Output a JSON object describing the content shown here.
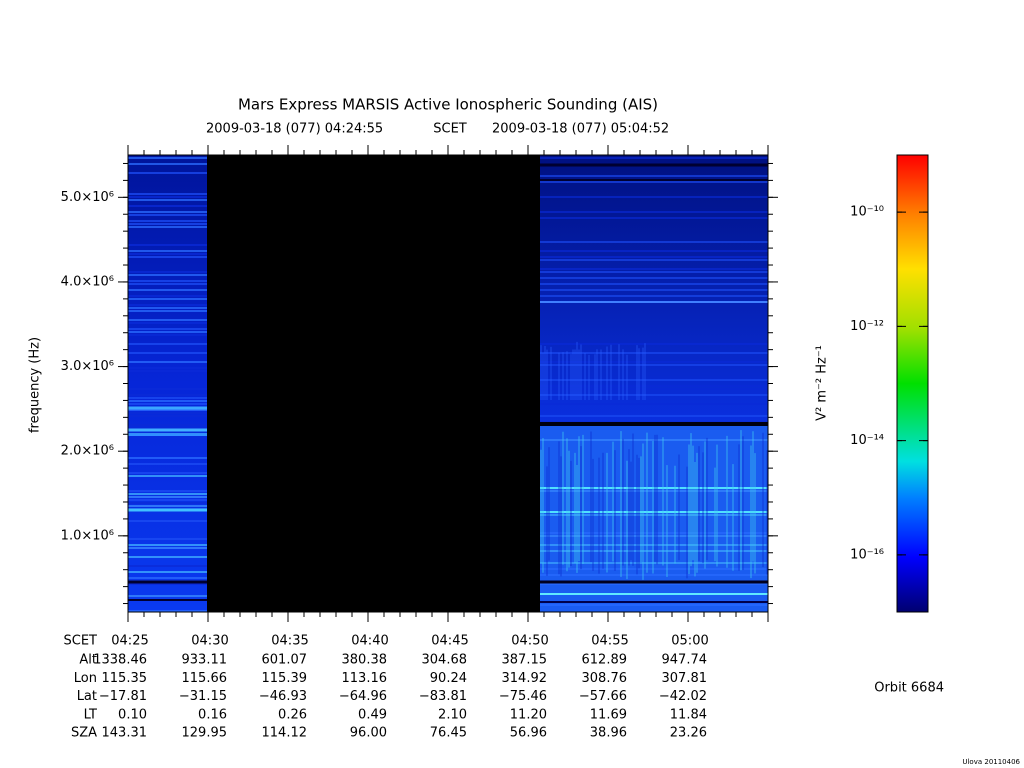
{
  "chart_data": {
    "type": "spectrogram",
    "title": "Mars Express MARSIS Active Ionospheric Sounding (AIS)",
    "time_start": "2009-03-18 (077) 04:24:55",
    "time_frame": "SCET",
    "time_end": "2009-03-18 (077) 05:04:52",
    "y_label": "frequency (Hz)",
    "ylim": [
      100000,
      5500000
    ],
    "yticks": [
      {
        "value": 1000000,
        "label": "1.0×10⁶"
      },
      {
        "value": 2000000,
        "label": "2.0×10⁶"
      },
      {
        "value": 3000000,
        "label": "3.0×10⁶"
      },
      {
        "value": 4000000,
        "label": "4.0×10⁶"
      },
      {
        "value": 5000000,
        "label": "5.0×10⁶"
      }
    ],
    "x_label": "SCET",
    "xticks": [
      "04:25",
      "04:30",
      "04:35",
      "04:40",
      "04:45",
      "04:50",
      "04:55",
      "05:00"
    ],
    "ephemeris": [
      {
        "label": "Alt",
        "values": [
          "1338.46",
          "933.11",
          "601.07",
          "380.38",
          "304.68",
          "387.15",
          "612.89",
          "947.74"
        ]
      },
      {
        "label": "Lon",
        "values": [
          "115.35",
          "115.66",
          "115.39",
          "113.16",
          "90.24",
          "314.92",
          "308.76",
          "307.81"
        ]
      },
      {
        "label": "Lat",
        "values": [
          "−17.81",
          "−31.15",
          "−46.93",
          "−64.96",
          "−83.81",
          "−75.46",
          "−57.66",
          "−42.02"
        ]
      },
      {
        "label": "LT",
        "values": [
          "0.10",
          "0.16",
          "0.26",
          "0.49",
          "2.10",
          "11.20",
          "11.69",
          "11.84"
        ]
      },
      {
        "label": "SZA",
        "values": [
          "143.31",
          "129.95",
          "114.12",
          "96.00",
          "76.45",
          "56.96",
          "38.96",
          "23.26"
        ]
      }
    ],
    "colorbar": {
      "label": "V² m⁻² Hz⁻¹",
      "log": true,
      "lim": [
        1e-17,
        1e-09
      ],
      "ticks": [
        {
          "value": 1e-16,
          "label": "10⁻¹⁶"
        },
        {
          "value": 1e-14,
          "label": "10⁻¹⁴"
        },
        {
          "value": 1e-12,
          "label": "10⁻¹²"
        },
        {
          "value": 1e-10,
          "label": "10⁻¹⁰"
        }
      ]
    },
    "orbit": "Orbit 6684",
    "footer": "Ulova 20110406"
  }
}
